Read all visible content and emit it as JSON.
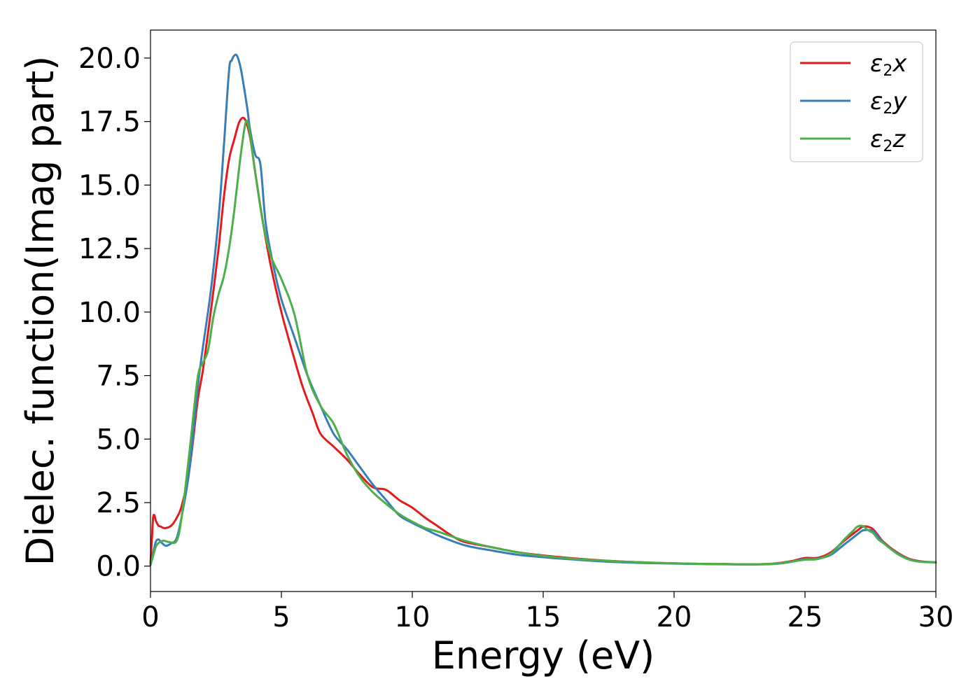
{
  "chart_data": {
    "type": "line",
    "title": "",
    "xlabel": "Energy (eV)",
    "ylabel": "Dielec. function(Imag part)",
    "xlim": [
      0,
      30
    ],
    "ylim": [
      -1.0,
      21.1
    ],
    "xticks": [
      0,
      5,
      10,
      15,
      20,
      25,
      30
    ],
    "xtick_labels": [
      "0",
      "5",
      "10",
      "15",
      "20",
      "25",
      "30"
    ],
    "yticks": [
      0,
      2.5,
      5,
      7.5,
      10,
      12.5,
      15,
      17.5,
      20
    ],
    "ytick_labels": [
      "0.0",
      "2.5",
      "5.0",
      "7.5",
      "10.0",
      "12.5",
      "15.0",
      "17.5",
      "20.0"
    ],
    "grid": false,
    "legend_position": "top-right",
    "series": [
      {
        "name": "ε2x",
        "legend_base": "ε",
        "legend_sub": "2",
        "legend_var": "x",
        "color": "#e41a1c",
        "x": [
          0,
          0.05,
          0.1,
          0.15,
          0.2,
          0.3,
          0.4,
          0.5,
          0.6,
          0.8,
          1.0,
          1.2,
          1.5,
          1.8,
          2.0,
          2.3,
          2.6,
          2.8,
          3.0,
          3.2,
          3.4,
          3.6,
          3.8,
          4.0,
          4.3,
          4.6,
          5.0,
          5.4,
          5.8,
          6.2,
          6.5,
          7.0,
          7.5,
          8.0,
          8.5,
          9.0,
          9.5,
          10.0,
          10.5,
          11.0,
          11.5,
          12.0,
          13.0,
          14.0,
          15.0,
          16.0,
          17.0,
          18.0,
          19.0,
          20.0,
          21.0,
          22.0,
          23.0,
          23.5,
          24.0,
          24.5,
          25.0,
          25.5,
          26.0,
          26.5,
          27.0,
          27.2,
          27.4,
          27.6,
          27.8,
          28.0,
          28.5,
          29.0,
          29.5,
          30.0
        ],
        "y": [
          0.1,
          1.0,
          1.9,
          2.0,
          1.8,
          1.6,
          1.55,
          1.5,
          1.5,
          1.6,
          1.9,
          2.4,
          3.9,
          6.5,
          7.7,
          10.0,
          12.5,
          14.5,
          16.0,
          16.8,
          17.5,
          17.6,
          16.9,
          15.5,
          13.5,
          11.8,
          10.0,
          8.5,
          7.1,
          6.0,
          5.2,
          4.7,
          4.2,
          3.6,
          3.1,
          3.0,
          2.6,
          2.3,
          1.9,
          1.55,
          1.2,
          0.95,
          0.75,
          0.55,
          0.42,
          0.32,
          0.24,
          0.18,
          0.14,
          0.11,
          0.09,
          0.08,
          0.07,
          0.08,
          0.12,
          0.2,
          0.32,
          0.33,
          0.55,
          1.0,
          1.4,
          1.55,
          1.55,
          1.45,
          1.2,
          0.95,
          0.55,
          0.28,
          0.18,
          0.15
        ]
      },
      {
        "name": "ε2y",
        "legend_base": "ε",
        "legend_sub": "2",
        "legend_var": "y",
        "color": "#377eb8",
        "x": [
          0,
          0.1,
          0.2,
          0.3,
          0.4,
          0.5,
          0.6,
          0.8,
          1.0,
          1.2,
          1.5,
          1.8,
          2.0,
          2.3,
          2.6,
          2.8,
          3.0,
          3.1,
          3.2,
          3.3,
          3.4,
          3.5,
          3.7,
          3.8,
          4.0,
          4.2,
          4.4,
          4.7,
          5.0,
          5.5,
          6.0,
          6.5,
          7.0,
          7.5,
          8.0,
          8.5,
          9.0,
          9.5,
          10.0,
          10.5,
          11.0,
          12.0,
          13.0,
          14.0,
          15.0,
          16.0,
          17.0,
          18.0,
          19.0,
          20.0,
          21.0,
          22.0,
          23.0,
          23.5,
          24.0,
          24.5,
          25.0,
          25.5,
          26.0,
          26.5,
          27.0,
          27.2,
          27.4,
          27.6,
          27.8,
          28.0,
          28.5,
          29.0,
          29.5,
          30.0
        ],
        "y": [
          0.05,
          0.5,
          0.95,
          1.05,
          0.95,
          0.85,
          0.8,
          0.9,
          1.1,
          2.0,
          3.9,
          7.0,
          8.6,
          10.8,
          13.7,
          16.5,
          19.5,
          19.9,
          20.1,
          20.1,
          19.8,
          19.3,
          18.0,
          17.2,
          16.2,
          15.8,
          13.5,
          11.8,
          10.5,
          9.0,
          7.5,
          6.3,
          5.2,
          4.6,
          3.9,
          3.2,
          2.6,
          2.0,
          1.7,
          1.45,
          1.2,
          0.82,
          0.62,
          0.45,
          0.35,
          0.27,
          0.2,
          0.15,
          0.12,
          0.1,
          0.08,
          0.07,
          0.06,
          0.07,
          0.1,
          0.17,
          0.28,
          0.3,
          0.45,
          0.85,
          1.25,
          1.4,
          1.42,
          1.38,
          1.15,
          0.92,
          0.52,
          0.26,
          0.17,
          0.15
        ]
      },
      {
        "name": "ε2z",
        "legend_base": "ε",
        "legend_sub": "2",
        "legend_var": "z",
        "color": "#4daf4a",
        "x": [
          0,
          0.1,
          0.2,
          0.3,
          0.5,
          0.7,
          1.0,
          1.2,
          1.5,
          1.8,
          2.0,
          2.2,
          2.4,
          2.6,
          2.8,
          3.0,
          3.2,
          3.4,
          3.6,
          3.7,
          3.8,
          4.0,
          4.3,
          4.6,
          5.0,
          5.5,
          6.0,
          6.5,
          7.0,
          7.5,
          8.0,
          8.5,
          9.0,
          9.5,
          10.0,
          10.5,
          11.0,
          12.0,
          13.0,
          14.0,
          15.0,
          16.0,
          17.0,
          18.0,
          19.0,
          20.0,
          21.0,
          22.0,
          23.0,
          23.5,
          24.0,
          24.5,
          25.0,
          25.5,
          26.0,
          26.5,
          26.8,
          27.0,
          27.2,
          27.4,
          27.6,
          27.8,
          28.0,
          28.5,
          29.0,
          29.5,
          30.0
        ],
        "y": [
          0.05,
          0.4,
          0.75,
          0.9,
          1.0,
          0.95,
          1.0,
          2.0,
          4.6,
          7.4,
          8.0,
          8.5,
          9.8,
          10.7,
          11.4,
          12.5,
          14.0,
          15.8,
          17.3,
          17.5,
          17.0,
          15.5,
          13.5,
          12.2,
          11.3,
          9.9,
          7.5,
          6.3,
          5.6,
          4.4,
          3.5,
          2.9,
          2.45,
          2.05,
          1.75,
          1.5,
          1.35,
          1.0,
          0.75,
          0.55,
          0.4,
          0.3,
          0.23,
          0.18,
          0.14,
          0.11,
          0.09,
          0.08,
          0.07,
          0.08,
          0.11,
          0.18,
          0.25,
          0.28,
          0.5,
          1.05,
          1.35,
          1.55,
          1.58,
          1.42,
          1.3,
          1.05,
          0.9,
          0.5,
          0.25,
          0.16,
          0.15
        ]
      }
    ]
  }
}
